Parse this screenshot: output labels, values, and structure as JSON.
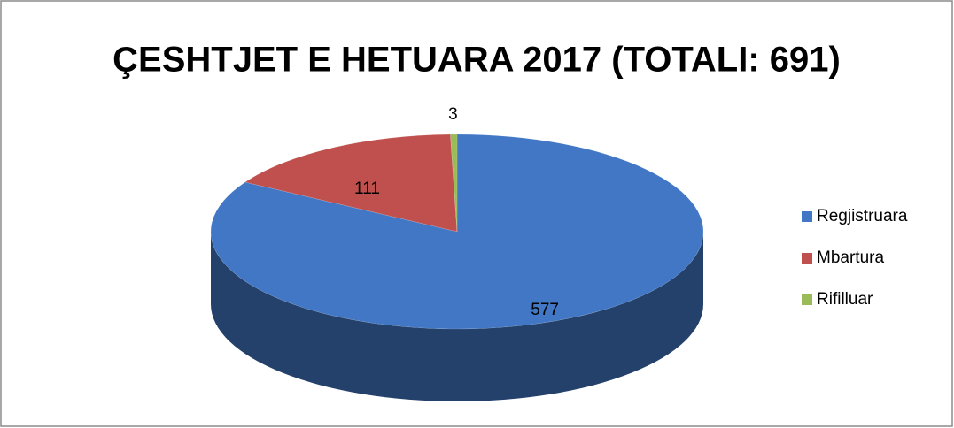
{
  "chart_data": {
    "type": "pie3d",
    "title": "ÇESHTJET E HETUARA 2017 (TOTALI: 691)",
    "categories": [
      "Regjistruara",
      "Mbartura",
      "Rifilluar"
    ],
    "values": [
      577,
      111,
      3
    ],
    "colors": [
      "#4177c4",
      "#c0504d",
      "#9bbb59"
    ],
    "legend": "right"
  }
}
